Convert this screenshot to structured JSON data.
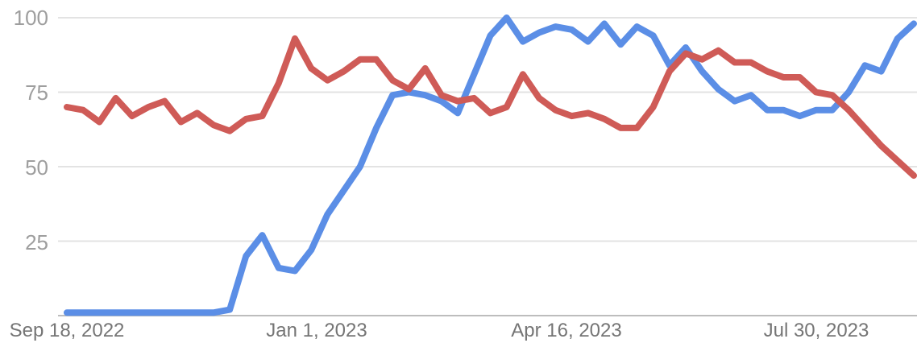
{
  "chart_data": {
    "type": "line",
    "title": "",
    "xlabel": "",
    "ylabel": "",
    "ylim": [
      0,
      100
    ],
    "yticks": [
      25,
      50,
      75,
      100
    ],
    "ytick_labels": [
      "25",
      "50",
      "75",
      "100"
    ],
    "xtick_labels": [
      "Sep 18, 2022",
      "Jan 1, 2023",
      "Apr 16, 2023",
      "Jul 30, 2023"
    ],
    "grid": true,
    "legend": "none",
    "x": [
      "2022-09-18",
      "2022-09-25",
      "2022-10-02",
      "2022-10-09",
      "2022-10-16",
      "2022-10-23",
      "2022-10-30",
      "2022-11-06",
      "2022-11-13",
      "2022-11-20",
      "2022-11-27",
      "2022-12-04",
      "2022-12-11",
      "2022-12-18",
      "2022-12-25",
      "2023-01-01",
      "2023-01-08",
      "2023-01-15",
      "2023-01-22",
      "2023-01-29",
      "2023-02-05",
      "2023-02-12",
      "2023-02-19",
      "2023-02-26",
      "2023-03-05",
      "2023-03-12",
      "2023-03-19",
      "2023-03-26",
      "2023-04-02",
      "2023-04-09",
      "2023-04-16",
      "2023-04-23",
      "2023-04-30",
      "2023-05-07",
      "2023-05-14",
      "2023-05-21",
      "2023-05-28",
      "2023-06-04",
      "2023-06-11",
      "2023-06-18",
      "2023-06-25",
      "2023-07-02",
      "2023-07-09",
      "2023-07-16",
      "2023-07-23",
      "2023-07-30",
      "2023-08-06",
      "2023-08-13",
      "2023-08-20",
      "2023-08-27",
      "2023-09-03",
      "2023-09-10",
      "2023-09-17"
    ],
    "series": [
      {
        "color": "#5b8ee6",
        "values": [
          1,
          1,
          1,
          1,
          1,
          1,
          1,
          1,
          1,
          1,
          2,
          20,
          27,
          16,
          15,
          22,
          34,
          42,
          50,
          63,
          74,
          75,
          74,
          72,
          68,
          81,
          94,
          100,
          92,
          95,
          97,
          96,
          92,
          98,
          91,
          97,
          94,
          84,
          90,
          82,
          76,
          72,
          74,
          69,
          69,
          67,
          69,
          69,
          75,
          84,
          82,
          93,
          98
        ]
      },
      {
        "color": "#cf5b57",
        "values": [
          70,
          69,
          65,
          73,
          67,
          70,
          72,
          65,
          68,
          64,
          62,
          66,
          67,
          78,
          93,
          83,
          79,
          82,
          86,
          86,
          79,
          76,
          83,
          74,
          72,
          73,
          68,
          70,
          81,
          73,
          69,
          67,
          68,
          66,
          63,
          63,
          70,
          82,
          88,
          86,
          89,
          85,
          85,
          82,
          80,
          80,
          75,
          74,
          69,
          63,
          57,
          52,
          47
        ]
      }
    ]
  }
}
